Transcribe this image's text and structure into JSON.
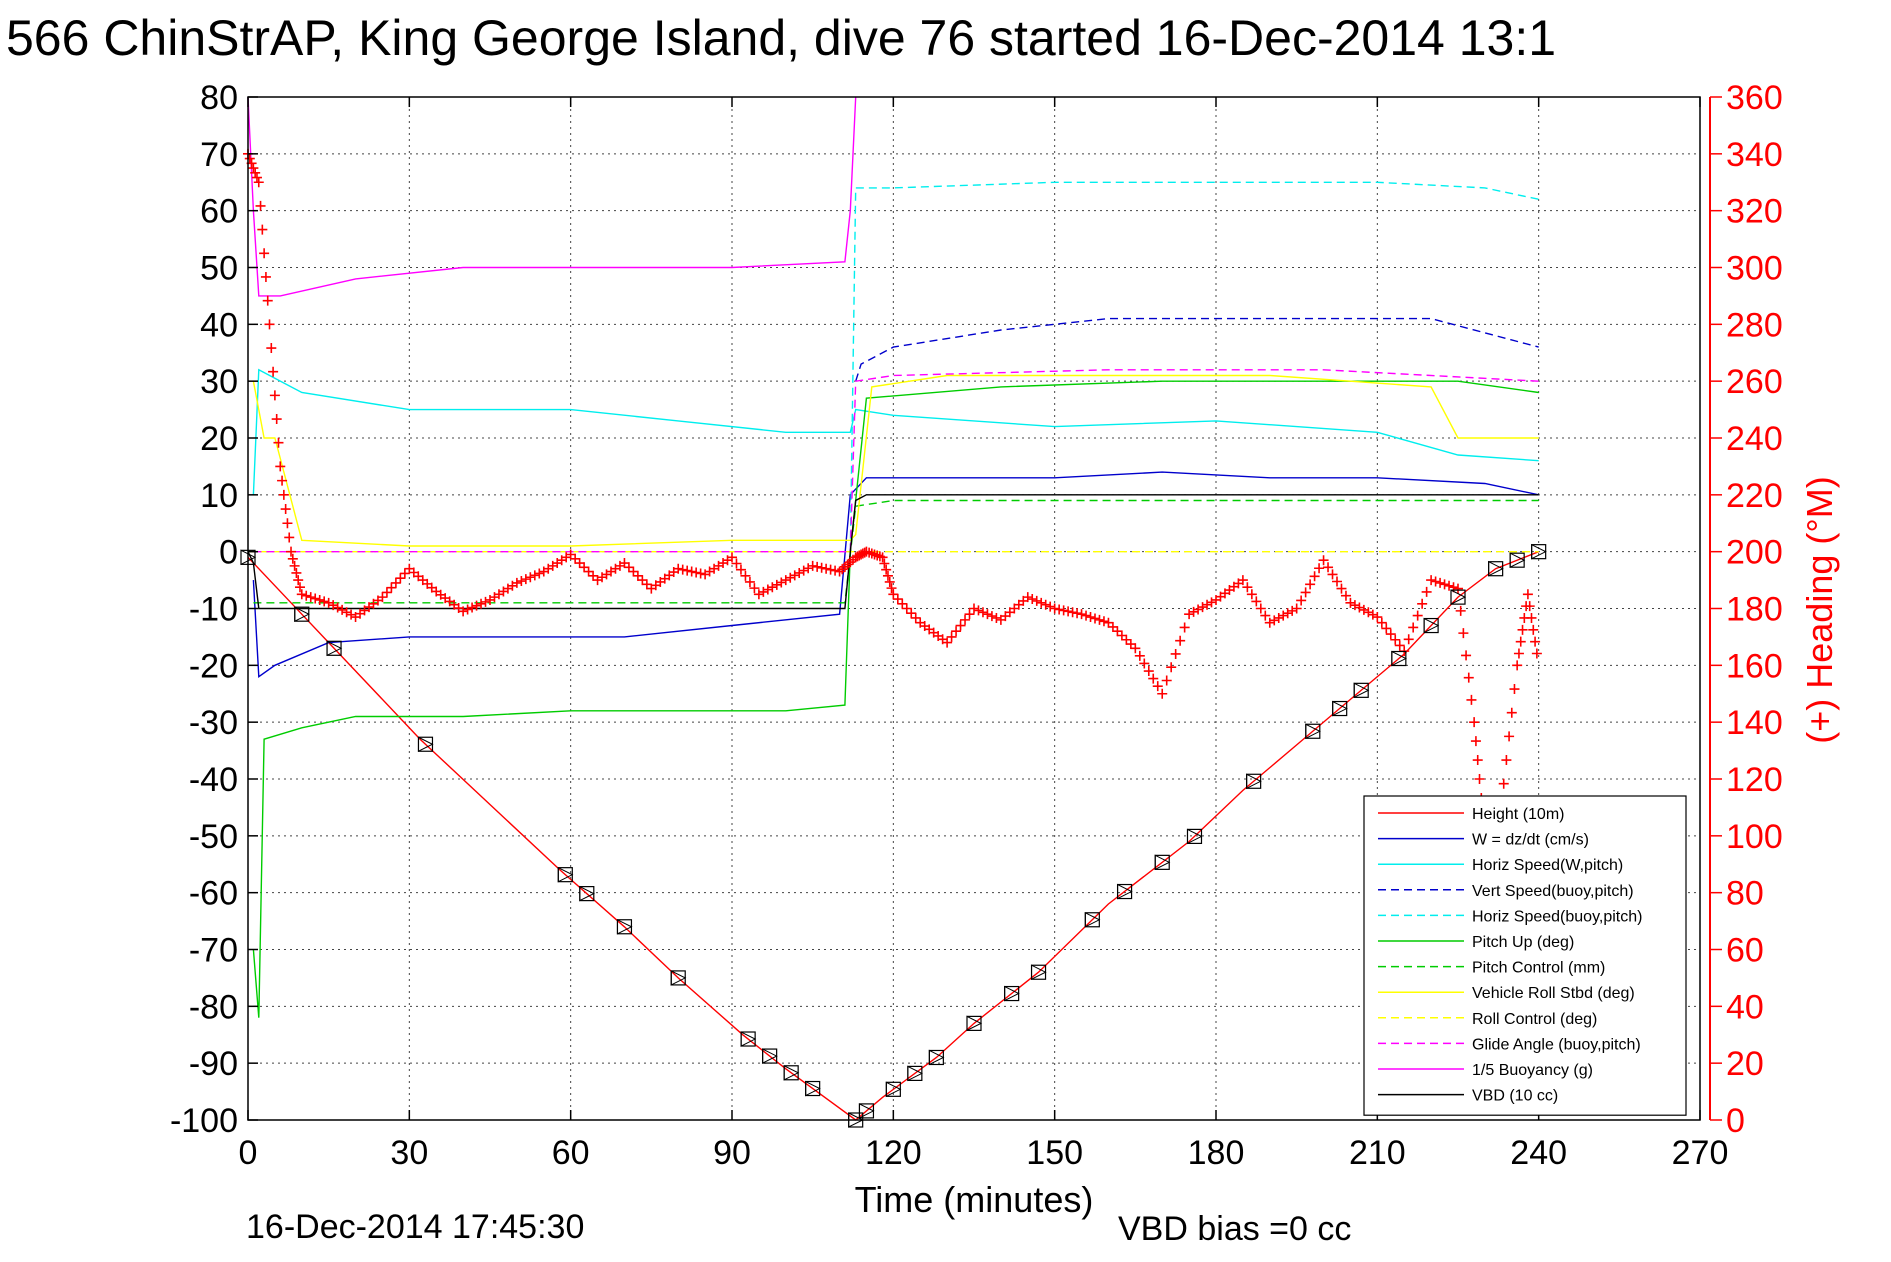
{
  "title": "566 ChinStrAP, King George Island, dive 76 started 16-Dec-2014 13:1",
  "footer": {
    "timestamp": "16-Dec-2014 17:45:30",
    "vbd_bias": "VBD bias =0 cc"
  },
  "chart_data": {
    "type": "line",
    "title": "566 ChinStrAP, King George Island, dive 76 started 16-Dec-2014 13:1",
    "xlabel": "Time (minutes)",
    "ylabel": "",
    "y2label": "(+) Heading (°M)",
    "xlim": [
      0,
      270
    ],
    "ylim": [
      -100,
      80
    ],
    "y2lim": [
      0,
      360
    ],
    "xticks": [
      "0",
      "30",
      "60",
      "90",
      "120",
      "150",
      "180",
      "210",
      "240",
      "270"
    ],
    "yticks": [
      "80",
      "70",
      "60",
      "50",
      "40",
      "30",
      "20",
      "10",
      "0",
      "-10",
      "-20",
      "-30",
      "-40",
      "-50",
      "-60",
      "-70",
      "-80",
      "-90",
      "-100"
    ],
    "y2ticks": [
      "360",
      "340",
      "320",
      "300",
      "280",
      "260",
      "240",
      "220",
      "200",
      "180",
      "160",
      "140",
      "120",
      "100",
      "80",
      "60",
      "40",
      "20",
      "0"
    ],
    "grid": true,
    "legend_position": "bottom-right",
    "series": [
      {
        "name": "Height (10m)",
        "color": "#ff0000",
        "style": "solid",
        "x": [
          0,
          10,
          32,
          58,
          70,
          80,
          92,
          100,
          113,
          118,
          128,
          135,
          147,
          160,
          175,
          185,
          195,
          205,
          215,
          225,
          232,
          240
        ],
        "y": [
          -1,
          -11,
          -33,
          -56,
          -66,
          -75,
          -85,
          -91,
          -100,
          -96,
          -89,
          -83,
          -74,
          -62,
          -51,
          -42,
          -34,
          -26,
          -18,
          -8,
          -3,
          0
        ]
      },
      {
        "name": "W = dz/dt (cm/s)",
        "color": "#0000cc",
        "style": "solid",
        "x": [
          1,
          2,
          5,
          15,
          30,
          50,
          70,
          90,
          110,
          112,
          115,
          130,
          150,
          170,
          190,
          210,
          230,
          240
        ],
        "y": [
          -5,
          -22,
          -20,
          -16,
          -15,
          -15,
          -15,
          -13,
          -11,
          10,
          13,
          13,
          13,
          14,
          13,
          13,
          12,
          10
        ]
      },
      {
        "name": "Horiz Speed(W,pitch)",
        "color": "#00eeee",
        "style": "solid",
        "x": [
          1,
          2,
          10,
          30,
          60,
          80,
          100,
          112,
          113,
          120,
          150,
          180,
          210,
          225,
          240
        ],
        "y": [
          10,
          32,
          28,
          25,
          25,
          23,
          21,
          21,
          25,
          24,
          22,
          23,
          21,
          17,
          16
        ]
      },
      {
        "name": "Vert Speed(buoy,pitch)",
        "color": "#0000cc",
        "style": "dashed",
        "x": [
          113,
          114,
          120,
          140,
          160,
          180,
          200,
          220,
          240
        ],
        "y": [
          30,
          33,
          36,
          39,
          41,
          41,
          41,
          41,
          36
        ]
      },
      {
        "name": "Horiz Speed(buoy,pitch)",
        "color": "#00eeee",
        "style": "dashed",
        "x": [
          112,
          113,
          120,
          150,
          180,
          210,
          230,
          240
        ],
        "y": [
          0,
          64,
          64,
          65,
          65,
          65,
          64,
          62
        ]
      },
      {
        "name": "Pitch Up (deg)",
        "color": "#00cc00",
        "style": "solid",
        "x": [
          1,
          2,
          3,
          10,
          20,
          40,
          60,
          80,
          100,
          111,
          112,
          115,
          140,
          170,
          200,
          225,
          240
        ],
        "y": [
          -70,
          -82,
          -33,
          -31,
          -29,
          -29,
          -28,
          -28,
          -28,
          -27,
          0,
          27,
          29,
          30,
          30,
          30,
          28
        ]
      },
      {
        "name": "Pitch Control (mm)",
        "color": "#00cc00",
        "style": "dashed",
        "x": [
          1,
          111,
          113,
          120,
          160,
          200,
          240
        ],
        "y": [
          -9,
          -9,
          8,
          9,
          9,
          9,
          9
        ]
      },
      {
        "name": "Vehicle Roll Stbd (deg)",
        "color": "#ffff00",
        "style": "solid",
        "x": [
          1,
          3,
          5,
          10,
          30,
          60,
          90,
          112,
          113,
          116,
          130,
          160,
          190,
          220,
          225,
          240
        ],
        "y": [
          30,
          20,
          20,
          2,
          1,
          1,
          2,
          2,
          3,
          29,
          31,
          31,
          31,
          29,
          20,
          20
        ]
      },
      {
        "name": "Roll Control (deg)",
        "color": "#ffff00",
        "style": "dashed",
        "x": [
          0,
          240
        ],
        "y": [
          0,
          0
        ]
      },
      {
        "name": "Glide Angle (buoy,pitch)",
        "color": "#ff00ff",
        "style": "dashed",
        "x": [
          1,
          112,
          113,
          120,
          160,
          200,
          240
        ],
        "y": [
          0,
          0,
          30,
          31,
          32,
          32,
          30
        ]
      },
      {
        "name": "1/5 Buoyancy (g)",
        "color": "#ff00ff",
        "style": "solid",
        "x": [
          0,
          1,
          2,
          6,
          20,
          40,
          70,
          90,
          111,
          112,
          113
        ],
        "y": [
          80,
          60,
          45,
          45,
          48,
          50,
          50,
          50,
          51,
          60,
          80
        ]
      },
      {
        "name": "VBD (10 cc)",
        "color": "#000000",
        "style": "solid",
        "x": [
          0,
          1,
          2,
          111,
          112,
          113,
          115,
          160,
          240
        ],
        "y": [
          0,
          -2,
          -10,
          -10,
          0,
          9,
          10,
          10,
          10
        ]
      }
    ],
    "heading": {
      "name": "(+) Heading (°M)",
      "color": "#ff0000",
      "marker": "+",
      "x": [
        0,
        2,
        4,
        6,
        8,
        10,
        15,
        20,
        25,
        30,
        35,
        40,
        45,
        50,
        55,
        60,
        65,
        70,
        75,
        80,
        85,
        90,
        95,
        100,
        105,
        110,
        113,
        115,
        118,
        120,
        125,
        130,
        135,
        140,
        145,
        150,
        155,
        160,
        165,
        170,
        175,
        180,
        185,
        190,
        195,
        200,
        205,
        210,
        215,
        220,
        225,
        228,
        230,
        233,
        236,
        238,
        240
      ],
      "y": [
        340,
        330,
        280,
        230,
        200,
        185,
        182,
        177,
        184,
        194,
        186,
        179,
        183,
        189,
        193,
        199,
        190,
        196,
        187,
        194,
        192,
        198,
        185,
        190,
        195,
        193,
        198,
        200,
        198,
        185,
        175,
        168,
        180,
        176,
        184,
        180,
        178,
        175,
        166,
        150,
        178,
        183,
        190,
        175,
        180,
        197,
        182,
        177,
        165,
        190,
        187,
        140,
        100,
        110,
        160,
        185,
        160
      ]
    },
    "depth_markers_x": [
      0,
      10,
      16,
      33,
      59,
      63,
      70,
      80,
      93,
      97,
      101,
      105,
      113,
      115,
      120,
      124,
      128,
      135,
      142,
      147,
      157,
      163,
      170,
      176,
      187,
      198,
      203,
      207,
      214,
      220,
      225,
      232,
      236,
      240
    ]
  }
}
